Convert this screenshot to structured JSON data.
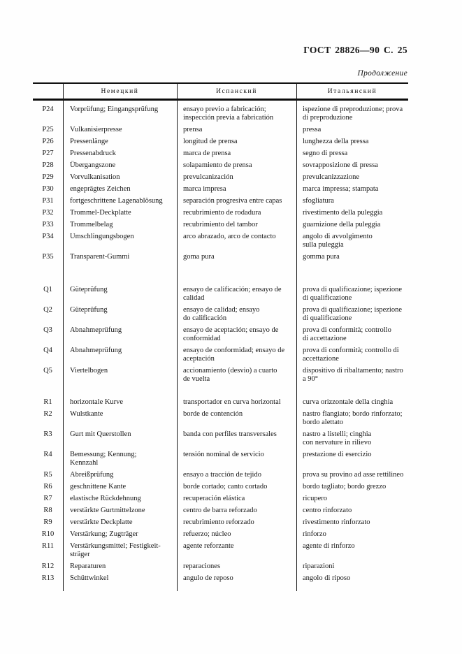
{
  "header": {
    "doc_ref": "ГОСТ 28826—90 С. 25",
    "continuation_label": "Продолжение"
  },
  "table": {
    "column_headers": {
      "code": "",
      "german": "Немецкий",
      "spanish": "Испанский",
      "italian": "Итальянский"
    },
    "sections": [
      {
        "rows": [
          {
            "code": "P24",
            "german": [
              "Vorprüfung; Eingangsprüfung"
            ],
            "spanish": [
              "ensayo previo a fabricación;",
              "inspección previa a fabricatión"
            ],
            "italian": [
              "ispezione di preproduzione; prova",
              "di preproduzione"
            ]
          },
          {
            "code": "P25",
            "german": [
              "Vulkanisierpresse"
            ],
            "spanish": [
              "prensa"
            ],
            "italian": [
              "pressa"
            ]
          },
          {
            "code": "P26",
            "german": [
              "Pressenlänge"
            ],
            "spanish": [
              "longitud de prensa"
            ],
            "italian": [
              "lunghezza della pressa"
            ]
          },
          {
            "code": "P27",
            "german": [
              "Pressenabdruck"
            ],
            "spanish": [
              "marca de prensa"
            ],
            "italian": [
              "segno di pressa"
            ]
          },
          {
            "code": "P28",
            "german": [
              "Übergangszone"
            ],
            "spanish": [
              "solapamiento de prensa"
            ],
            "italian": [
              "sovrapposizione di pressa"
            ]
          },
          {
            "code": "P29",
            "german": [
              "Vorvulkanisation"
            ],
            "spanish": [
              "prevulcanización"
            ],
            "italian": [
              "prevulcanizzazione"
            ]
          },
          {
            "code": "P30",
            "german": [
              "engeprägtes Zeichen"
            ],
            "spanish": [
              "marca impresa"
            ],
            "italian": [
              "marca impressa; stampata"
            ]
          },
          {
            "code": "P31",
            "german": [
              "fortgeschrittene Lagenablösung"
            ],
            "spanish": [
              "separación progresiva entre capas"
            ],
            "italian": [
              "sfogliatura"
            ]
          },
          {
            "code": "P32",
            "german": [
              "Trommel-Deckplatte"
            ],
            "spanish": [
              "recubrimiento de rodadura"
            ],
            "italian": [
              "rivestimento della puleggia"
            ]
          },
          {
            "code": "P33",
            "german": [
              "Trommelbelag"
            ],
            "spanish": [
              "recubrimiento del tambor"
            ],
            "italian": [
              "guarnizione della puleggia"
            ]
          },
          {
            "code": "P34",
            "german": [
              "Umschlingungsbogen"
            ],
            "spanish": [
              "arco abrazado, arco de contacto"
            ],
            "italian": [
              "angolo di avvolgimento",
              "sulla puleggia"
            ]
          },
          {
            "code": "P35",
            "german": [
              "Transparent-Gummi"
            ],
            "spanish": [
              "goma pura"
            ],
            "italian": [
              "gomma pura"
            ]
          }
        ]
      },
      {
        "rows": [
          {
            "code": "Q1",
            "german": [
              "Güteprüfung"
            ],
            "spanish": [
              "ensayo de calificación; ensayo de",
              "calidad"
            ],
            "italian": [
              "prova di qualificazione; ispezione",
              "di qualificazione"
            ]
          },
          {
            "code": "Q2",
            "german": [
              "Güteprüfung"
            ],
            "spanish": [
              "ensayo de calidad; ensayo",
              "do calificación"
            ],
            "italian": [
              "prova di qualificazione; ispezione",
              "di qualificazione"
            ]
          },
          {
            "code": "Q3",
            "german": [
              "Abnahmeprüfung"
            ],
            "spanish": [
              "ensayo de aceptación; ensayo de",
              "conformidad"
            ],
            "italian": [
              "prova di conformità; controllo",
              "di accettazione"
            ]
          },
          {
            "code": "Q4",
            "german": [
              "Abnahmeprüfung"
            ],
            "spanish": [
              "ensayo de conformidad; ensayo de",
              "aceptación"
            ],
            "italian": [
              "prova di conformità; controllo di",
              "accettazione"
            ]
          },
          {
            "code": "Q5",
            "german": [
              "Viertelbogen"
            ],
            "spanish": [
              "accionamiento (desvio) a cuarto",
              "de vuelta"
            ],
            "italian": [
              "dispositivo di ribaltamento; nastro",
              "a 90°"
            ]
          }
        ]
      },
      {
        "rows": [
          {
            "code": "R1",
            "german": [
              "horizontale Kurve"
            ],
            "spanish": [
              "transportador en curva horizontal"
            ],
            "italian": [
              "curva orizzontale della cinghia"
            ]
          },
          {
            "code": "R2",
            "german": [
              "Wulstkante"
            ],
            "spanish": [
              "borde de contención"
            ],
            "italian": [
              "nastro flangiato; bordo rinforzato;",
              "bordo alettato"
            ]
          },
          {
            "code": "R3",
            "german": [
              "Gurt mit Querstollen"
            ],
            "spanish": [
              "banda con perfiles transversales"
            ],
            "italian": [
              "nastro a listelli; cinghia",
              "con nervature in rilievo"
            ]
          },
          {
            "code": "R4",
            "german": [
              "Bemessung; Kennung;",
              "Kennzahl"
            ],
            "spanish": [
              "tensión nominal de servicio"
            ],
            "italian": [
              "prestazione di esercizio"
            ]
          },
          {
            "code": "R5",
            "german": [
              "Abreißprüfung"
            ],
            "spanish": [
              "ensayo a tracción de tejido"
            ],
            "italian": [
              "prova su provino ad asse rettilineo"
            ]
          },
          {
            "code": "R6",
            "german": [
              "geschnittene Kante"
            ],
            "spanish": [
              "borde cortado; canto cortado"
            ],
            "italian": [
              "bordo tagliato; bordo grezzo"
            ]
          },
          {
            "code": "R7",
            "german": [
              "elastische Rückdehnung"
            ],
            "spanish": [
              "recuperación elástica"
            ],
            "italian": [
              "ricupero"
            ]
          },
          {
            "code": "R8",
            "german": [
              "verstärkte Gurtmittelzone"
            ],
            "spanish": [
              "centro de barra reforzado"
            ],
            "italian": [
              "centro rinforzato"
            ]
          },
          {
            "code": "R9",
            "german": [
              "verstärkte Deckplatte"
            ],
            "spanish": [
              "recubrimiento reforzado"
            ],
            "italian": [
              "rivestimento rinforzato"
            ]
          },
          {
            "code": "R10",
            "german": [
              "Verstärkung; Zugträger"
            ],
            "spanish": [
              "refuerzo; núcleo"
            ],
            "italian": [
              "rinforzo"
            ]
          },
          {
            "code": "R11",
            "german": [
              "Verstärkungsmittel; Festigkeit-",
              "sträger"
            ],
            "spanish": [
              "agente reforzante"
            ],
            "italian": [
              "agente di rinforzo"
            ]
          },
          {
            "code": "R12",
            "german": [
              "Reparaturen"
            ],
            "spanish": [
              "reparaciones"
            ],
            "italian": [
              "riparazioni"
            ]
          },
          {
            "code": "R13",
            "german": [
              "Schüttwinkel"
            ],
            "spanish": [
              "angulo de reposo"
            ],
            "italian": [
              "angolo di riposo"
            ]
          }
        ]
      }
    ]
  }
}
